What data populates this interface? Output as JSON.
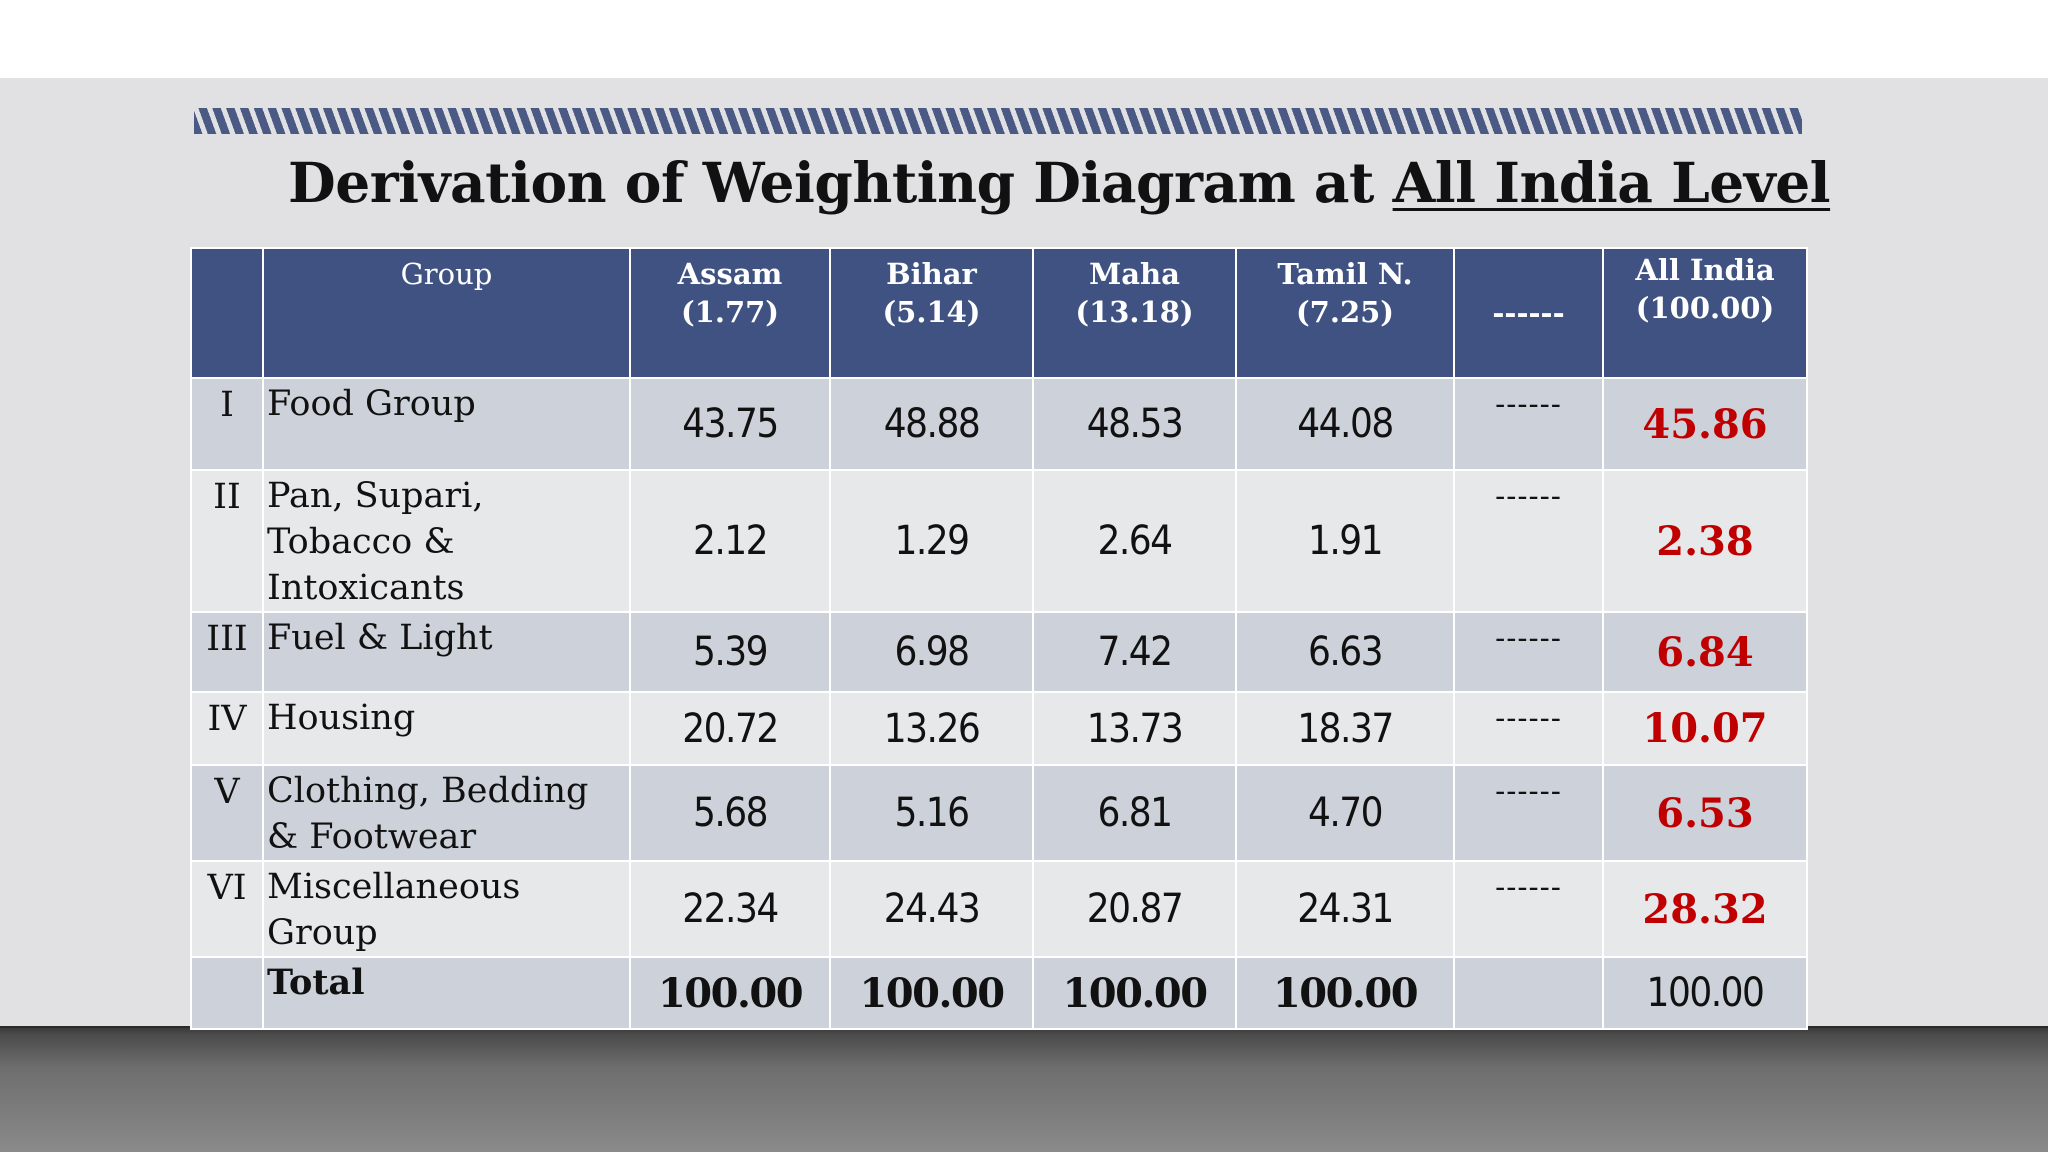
{
  "title": {
    "prefix": "Derivation of Weighting Diagram at ",
    "underlined": "All India Level"
  },
  "table": {
    "headers": {
      "group": "Group",
      "assam": [
        "Assam",
        "(1.77)"
      ],
      "bihar": [
        "Bihar",
        "(5.14)"
      ],
      "maha": [
        "Maha",
        "(13.18)"
      ],
      "tamil": [
        "Tamil N.",
        "(7.25)"
      ],
      "dash": "------",
      "all_india": [
        "All India",
        "(100.00)"
      ]
    },
    "rows": [
      {
        "num": "I",
        "group": "Food Group",
        "assam": "43.75",
        "bihar": "48.88",
        "maha": "48.53",
        "tamil": "44.08",
        "dash": "------",
        "all_india": "45.86"
      },
      {
        "num": "II",
        "group": "Pan, Supari, Tobacco & Intoxicants",
        "assam": "2.12",
        "bihar": "1.29",
        "maha": "2.64",
        "tamil": "1.91",
        "dash": "------",
        "all_india": "2.38"
      },
      {
        "num": "III",
        "group": "Fuel & Light",
        "assam": "5.39",
        "bihar": "6.98",
        "maha": "7.42",
        "tamil": "6.63",
        "dash": "------",
        "all_india": "6.84"
      },
      {
        "num": "IV",
        "group": "Housing",
        "assam": "20.72",
        "bihar": "13.26",
        "maha": "13.73",
        "tamil": "18.37",
        "dash": "------",
        "all_india": "10.07"
      },
      {
        "num": "V",
        "group": "Clothing, Bedding & Footwear",
        "assam": "5.68",
        "bihar": "5.16",
        "maha": "6.81",
        "tamil": "4.70",
        "dash": "------",
        "all_india": "6.53"
      },
      {
        "num": "VI",
        "group": "Miscellaneous Group",
        "assam": "22.34",
        "bihar": "24.43",
        "maha": "20.87",
        "tamil": "24.31",
        "dash": "------",
        "all_india": "28.32"
      }
    ],
    "total": {
      "label": "Total",
      "assam": "100.00",
      "bihar": "100.00",
      "maha": "100.00",
      "tamil": "100.00",
      "dash": "",
      "all_india": "100.00"
    }
  },
  "colors": {
    "header_bg": "#3f5282",
    "highlight": "#c00000",
    "row_dark": "#cdd1da",
    "row_light": "#e7e8ea"
  }
}
